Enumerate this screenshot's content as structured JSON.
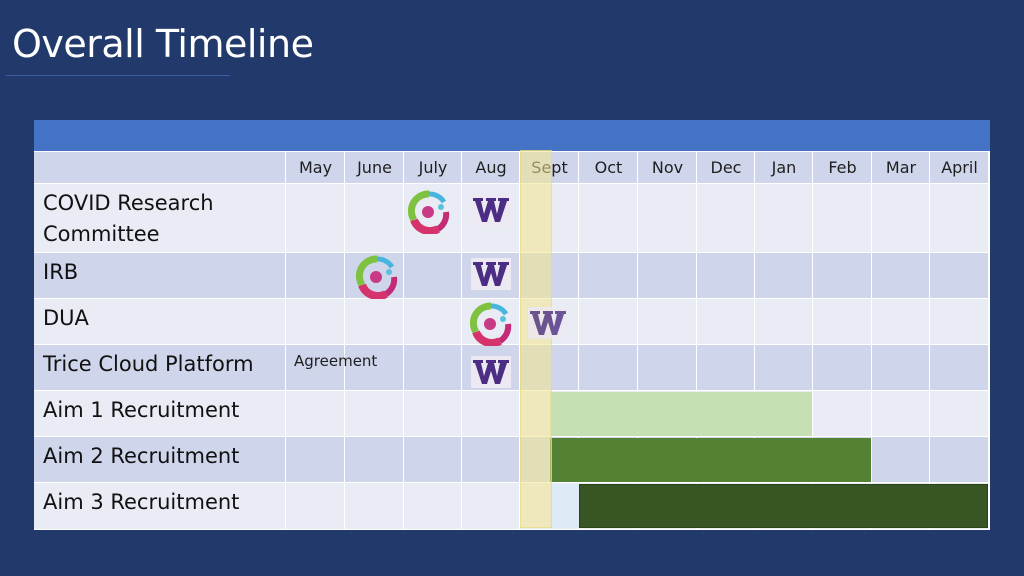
{
  "slide": {
    "title": "Overall Timeline"
  },
  "table": {
    "months": [
      "May",
      "June",
      "July",
      "Aug",
      "Sept",
      "Oct",
      "Nov",
      "Dec",
      "Jan",
      "Feb",
      "Mar",
      "April"
    ],
    "rows": [
      {
        "label": "COVID Research Committee"
      },
      {
        "label": "IRB"
      },
      {
        "label": "DUA"
      },
      {
        "label": "Trice Cloud Platform",
        "note": "Agreement"
      },
      {
        "label": "Aim 1 Recruitment"
      },
      {
        "label": "Aim 2 Recruitment"
      },
      {
        "label": "Aim 3 Recruitment"
      }
    ]
  },
  "colors": {
    "background": "#213a6b",
    "header": "#4472c4",
    "aim1": "#c6e0b4",
    "aim2": "#548235",
    "aim3": "#375623",
    "uw_purple": "#4b2e83"
  },
  "icons": {
    "circle_logo": "colorful-circle-logo-icon",
    "uw_logo": "uw-w-logo-icon"
  }
}
